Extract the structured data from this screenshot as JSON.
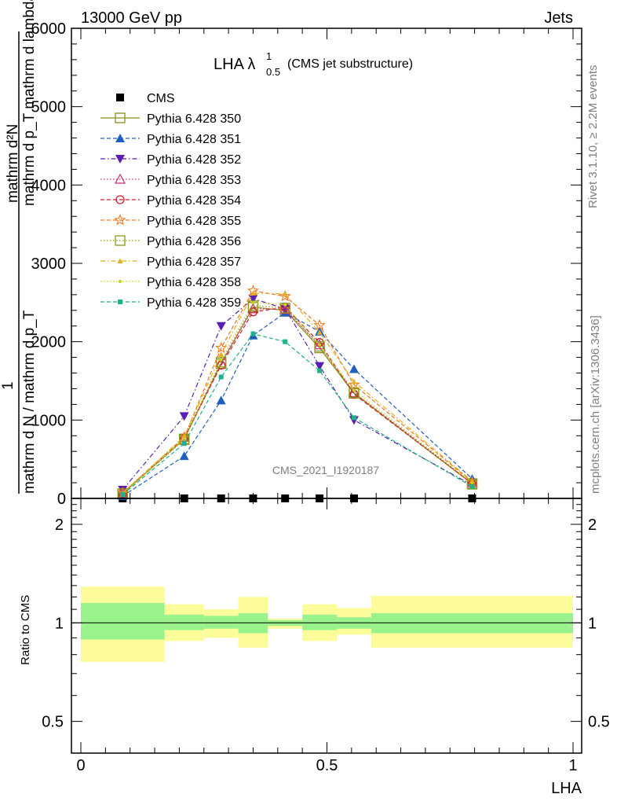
{
  "header": {
    "energy_label": "13000 GeV pp",
    "process_label": "Jets"
  },
  "side": {
    "rivet_label": "Rivet 3.1.10, ≥ 2.2M events",
    "mcplots_label": "mcplots.cern.ch [arXiv:1306.3436]"
  },
  "main_plot": {
    "title_main": "LHA λ",
    "title_sup": "1",
    "title_sub": "0.5",
    "title_note": "(CMS jet substructure)",
    "ylabel_top": "mathrm d²N",
    "ylabel_top2": "mathrm d p_T mathrm d lambda",
    "ylabel_num": "1",
    "ylabel_bottom": "mathrm d N / mathrm d p_T",
    "watermark": "CMS_2021_I1920187",
    "yticks": [
      "0",
      "1000",
      "2000",
      "3000",
      "4000",
      "5000",
      "6000"
    ]
  },
  "ratio_plot": {
    "ylabel": "Ratio to CMS",
    "yticks": [
      "0.5",
      "1",
      "2"
    ],
    "xticks": [
      "0",
      "0.5",
      "1"
    ],
    "xlabel": "LHA"
  },
  "chart_data": {
    "type": "line",
    "title": "LHA λ^1_0.5 (CMS jet substructure)",
    "xlabel": "LHA",
    "ylabel": "1 / (mathrm d N / mathrm d p_T) · mathrm d²N / (mathrm d p_T mathrm d lambda)",
    "xlim": [
      0,
      1
    ],
    "ylim": [
      0,
      6000
    ],
    "x": [
      0.085,
      0.21,
      0.285,
      0.35,
      0.415,
      0.485,
      0.555,
      0.795
    ],
    "x_edges": [
      0,
      0.17,
      0.25,
      0.32,
      0.38,
      0.45,
      0.52,
      0.59,
      1.0
    ],
    "legend_placement": "top-left",
    "series": [
      {
        "name": "CMS",
        "color": "#000000",
        "marker": "square-filled",
        "dash": "none",
        "values": [
          0,
          0,
          0,
          0,
          0,
          0,
          0,
          0
        ]
      },
      {
        "name": "Pythia 6.428 350",
        "color": "#8c8c1a",
        "marker": "square-open",
        "dash": "solid",
        "values": [
          60,
          760,
          1720,
          2440,
          2400,
          1920,
          1340,
          190
        ]
      },
      {
        "name": "Pythia 6.428 351",
        "color": "#1f5fbf",
        "marker": "triangle-up-filled",
        "dash": "dashed",
        "values": [
          30,
          540,
          1250,
          2080,
          2370,
          2130,
          1650,
          250
        ]
      },
      {
        "name": "Pythia 6.428 352",
        "color": "#5a1fb0",
        "marker": "triangle-down-filled",
        "dash": "dashdot",
        "values": [
          110,
          1050,
          2200,
          2550,
          2420,
          1690,
          1000,
          170
        ]
      },
      {
        "name": "Pythia 6.428 353",
        "color": "#c0307a",
        "marker": "triangle-up-open",
        "dash": "dotted",
        "values": [
          70,
          780,
          1730,
          2420,
          2410,
          1960,
          1350,
          200
        ]
      },
      {
        "name": "Pythia 6.428 354",
        "color": "#d0202a",
        "marker": "circle-open",
        "dash": "dashed",
        "values": [
          70,
          770,
          1700,
          2380,
          2440,
          1990,
          1330,
          190
        ]
      },
      {
        "name": "Pythia 6.428 355",
        "color": "#f07820",
        "marker": "star-open",
        "dash": "dashed",
        "values": [
          70,
          780,
          1920,
          2650,
          2580,
          2210,
          1450,
          210
        ]
      },
      {
        "name": "Pythia 6.428 356",
        "color": "#8c9a1a",
        "marker": "square-open",
        "dash": "dotted",
        "values": [
          60,
          750,
          1740,
          2460,
          2430,
          1940,
          1350,
          180
        ]
      },
      {
        "name": "Pythia 6.428 357",
        "color": "#e0b020",
        "marker": "tri-small",
        "dash": "dashdot",
        "values": [
          70,
          790,
          1840,
          2620,
          2610,
          2120,
          1490,
          220
        ]
      },
      {
        "name": "Pythia 6.428 358",
        "color": "#c8d020",
        "marker": "dot-small",
        "dash": "dotted",
        "values": [
          60,
          770,
          1770,
          2500,
          2470,
          1960,
          1380,
          200
        ]
      },
      {
        "name": "Pythia 6.428 359",
        "color": "#20b08a",
        "marker": "square-small-filled",
        "dash": "dashed",
        "values": [
          50,
          700,
          1550,
          2100,
          2000,
          1630,
          1030,
          150
        ]
      }
    ],
    "ratio": {
      "ylabel": "Ratio to CMS",
      "ylim": [
        0.4,
        2.4
      ],
      "scale": "log",
      "inner_band": [
        {
          "x0": 0.0,
          "x1": 0.17,
          "lo": 0.89,
          "hi": 1.15
        },
        {
          "x0": 0.17,
          "x1": 0.25,
          "lo": 0.95,
          "hi": 1.06
        },
        {
          "x0": 0.25,
          "x1": 0.32,
          "lo": 0.96,
          "hi": 1.05
        },
        {
          "x0": 0.32,
          "x1": 0.38,
          "lo": 0.93,
          "hi": 1.07
        },
        {
          "x0": 0.38,
          "x1": 0.45,
          "lo": 0.98,
          "hi": 1.02
        },
        {
          "x0": 0.45,
          "x1": 0.52,
          "lo": 0.95,
          "hi": 1.06
        },
        {
          "x0": 0.52,
          "x1": 0.59,
          "lo": 0.96,
          "hi": 1.04
        },
        {
          "x0": 0.59,
          "x1": 1.0,
          "lo": 0.93,
          "hi": 1.07
        }
      ],
      "outer_band": [
        {
          "x0": 0.0,
          "x1": 0.17,
          "lo": 0.76,
          "hi": 1.29
        },
        {
          "x0": 0.17,
          "x1": 0.25,
          "lo": 0.88,
          "hi": 1.14
        },
        {
          "x0": 0.25,
          "x1": 0.32,
          "lo": 0.9,
          "hi": 1.1
        },
        {
          "x0": 0.32,
          "x1": 0.38,
          "lo": 0.84,
          "hi": 1.2
        },
        {
          "x0": 0.38,
          "x1": 0.45,
          "lo": 0.96,
          "hi": 1.03
        },
        {
          "x0": 0.45,
          "x1": 0.52,
          "lo": 0.88,
          "hi": 1.14
        },
        {
          "x0": 0.52,
          "x1": 0.59,
          "lo": 0.92,
          "hi": 1.11
        },
        {
          "x0": 0.59,
          "x1": 1.0,
          "lo": 0.84,
          "hi": 1.21
        }
      ],
      "band_colors": {
        "inner": "#99f28c",
        "outer": "#fdfc9b"
      }
    }
  }
}
